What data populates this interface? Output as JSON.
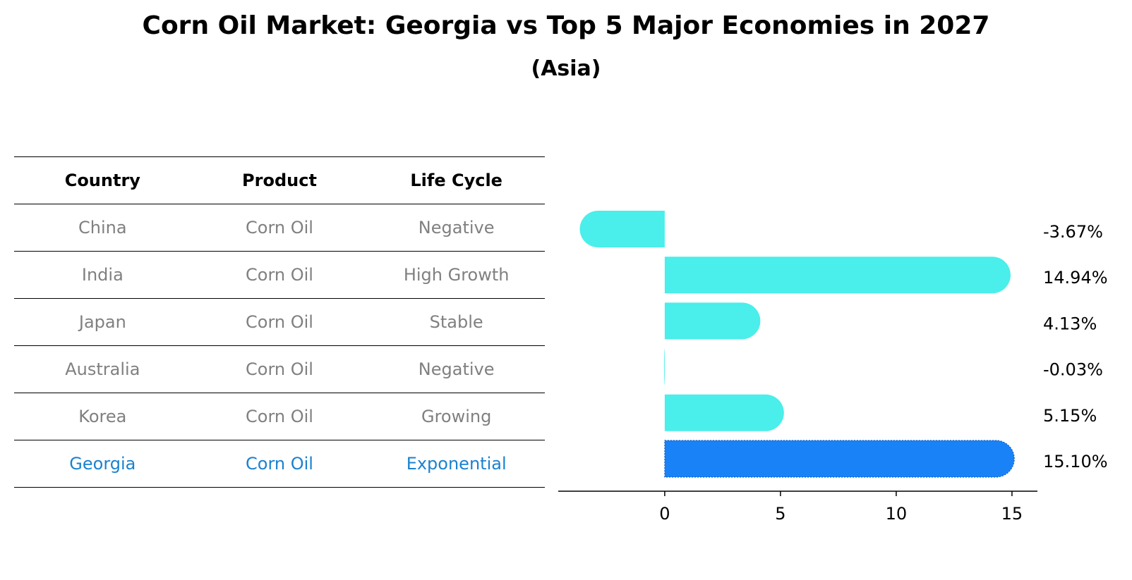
{
  "title": "Corn Oil Market: Georgia vs Top 5 Major Economies in 2027",
  "subtitle": "(Asia)",
  "table": {
    "headers": [
      "Country",
      "Product",
      "Life Cycle"
    ],
    "rows": [
      {
        "country": "China",
        "product": "Corn Oil",
        "life_cycle": "Negative"
      },
      {
        "country": "India",
        "product": "Corn Oil",
        "life_cycle": "High Growth"
      },
      {
        "country": "Japan",
        "product": "Corn Oil",
        "life_cycle": "Stable"
      },
      {
        "country": "Australia",
        "product": "Corn Oil",
        "life_cycle": "Negative"
      },
      {
        "country": "Korea",
        "product": "Corn Oil",
        "life_cycle": "Growing"
      },
      {
        "country": "Georgia",
        "product": "Corn Oil",
        "life_cycle": "Exponential"
      }
    ]
  },
  "chart_data": {
    "type": "bar",
    "orientation": "horizontal",
    "categories": [
      "China",
      "India",
      "Japan",
      "Australia",
      "Korea",
      "Georgia"
    ],
    "values": [
      -3.67,
      14.94,
      4.13,
      -0.03,
      5.15,
      15.1
    ],
    "value_labels": [
      "-3.67%",
      "14.94%",
      "4.13%",
      "-0.03%",
      "5.15%",
      "15.10%"
    ],
    "highlight_category": "Georgia",
    "xlim": [
      -4.6,
      16.1
    ],
    "xticks": [
      0,
      5,
      10,
      15
    ],
    "grid": false,
    "colors": {
      "bar": "#4aeeea",
      "highlight": "#1a82f7",
      "table_text": "#808080",
      "table_highlight_text": "#1a82d0"
    }
  }
}
